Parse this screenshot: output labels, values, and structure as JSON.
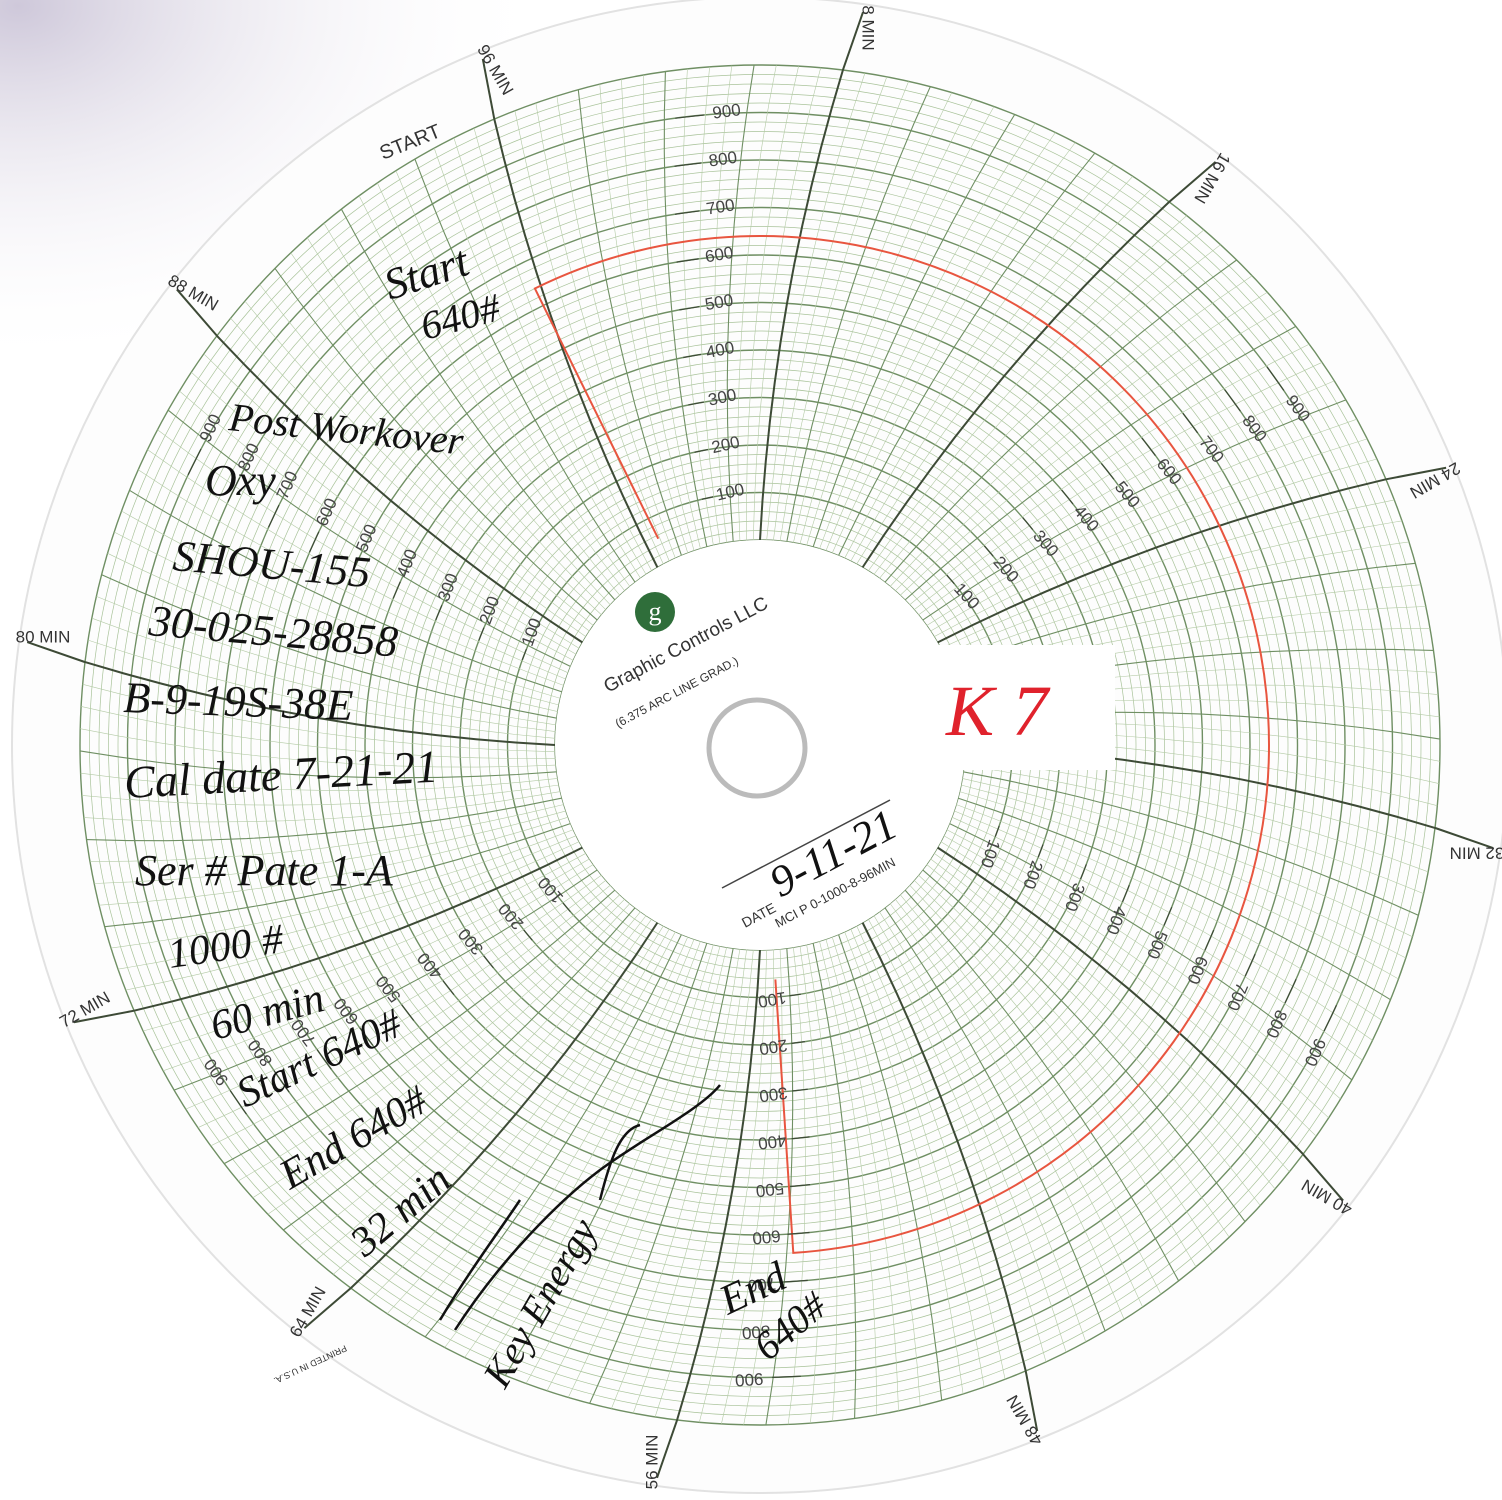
{
  "printed": {
    "start_label": "START",
    "logo": "g",
    "brand": "Graphic Controls LLC",
    "grad_note": "(6.375 ARC LINE GRAD.)",
    "date_label": "DATE",
    "chart_code": "MCI P 0-1000-8-96MIN",
    "printed_in": "PRINTED IN U.S.A."
  },
  "time_scale": {
    "range": [
      0,
      96
    ],
    "labels": [
      {
        "value": 8,
        "label": "8 MIN"
      },
      {
        "value": 16,
        "label": "16 MIN"
      },
      {
        "value": 24,
        "label": "24 MIN"
      },
      {
        "value": 32,
        "label": "32 MIN"
      },
      {
        "value": 40,
        "label": "40 MIN"
      },
      {
        "value": 48,
        "label": "48 MIN"
      },
      {
        "value": 56,
        "label": "56 MIN"
      },
      {
        "value": 64,
        "label": "64 MIN"
      },
      {
        "value": 72,
        "label": "72 MIN"
      },
      {
        "value": 80,
        "label": "80 MIN"
      },
      {
        "value": 88,
        "label": "88 MIN"
      },
      {
        "value": 96,
        "label": "96 MIN"
      }
    ]
  },
  "pressure_scale": {
    "range": [
      0,
      1000
    ],
    "ticks": [
      100,
      200,
      300,
      400,
      500,
      600,
      700,
      800,
      900
    ]
  },
  "trace": {
    "pressure": 640,
    "start_min": 1,
    "end_min": 55
  },
  "handwritten": {
    "date": "9-11-21",
    "box": "K 7",
    "notes": [
      "Start",
      "640#",
      "Post Workover",
      "Oxy",
      "SHOU-155",
      "30-025-28858",
      "B-9-19S-38E",
      "Cal date 7-21-21",
      "Ser # Pate 1-A",
      "1000 #",
      "60 min",
      "Start 640#",
      "End 640#",
      "32 min",
      "Key Energy",
      "End",
      "640#"
    ]
  }
}
